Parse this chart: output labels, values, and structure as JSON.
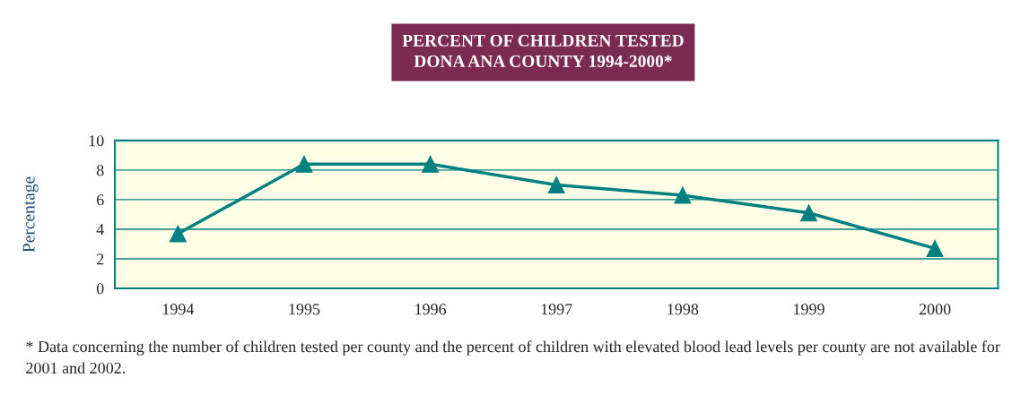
{
  "chart_data": {
    "type": "line",
    "title": "PERCENT OF CHILDREN TESTED\nDONA ANA COUNTY 1994-2000*",
    "ylabel": "Percentage",
    "categories": [
      "1994",
      "1995",
      "1996",
      "1997",
      "1998",
      "1999",
      "2000"
    ],
    "series": [
      {
        "color": "#008080",
        "values": [
          3.7,
          8.4,
          8.4,
          7.0,
          6.3,
          5.1,
          2.7
        ]
      }
    ],
    "ylim": [
      0,
      10
    ],
    "yticks": [
      0,
      2,
      4,
      6,
      8,
      10
    ],
    "grid": "y",
    "marker": "triangle",
    "line_style": "solid",
    "legend": false,
    "annotations": [
      "* Data concerning the number of children tested per county and the percent of children with elevated blood lead levels per county are not available for 2001 and 2002."
    ]
  }
}
